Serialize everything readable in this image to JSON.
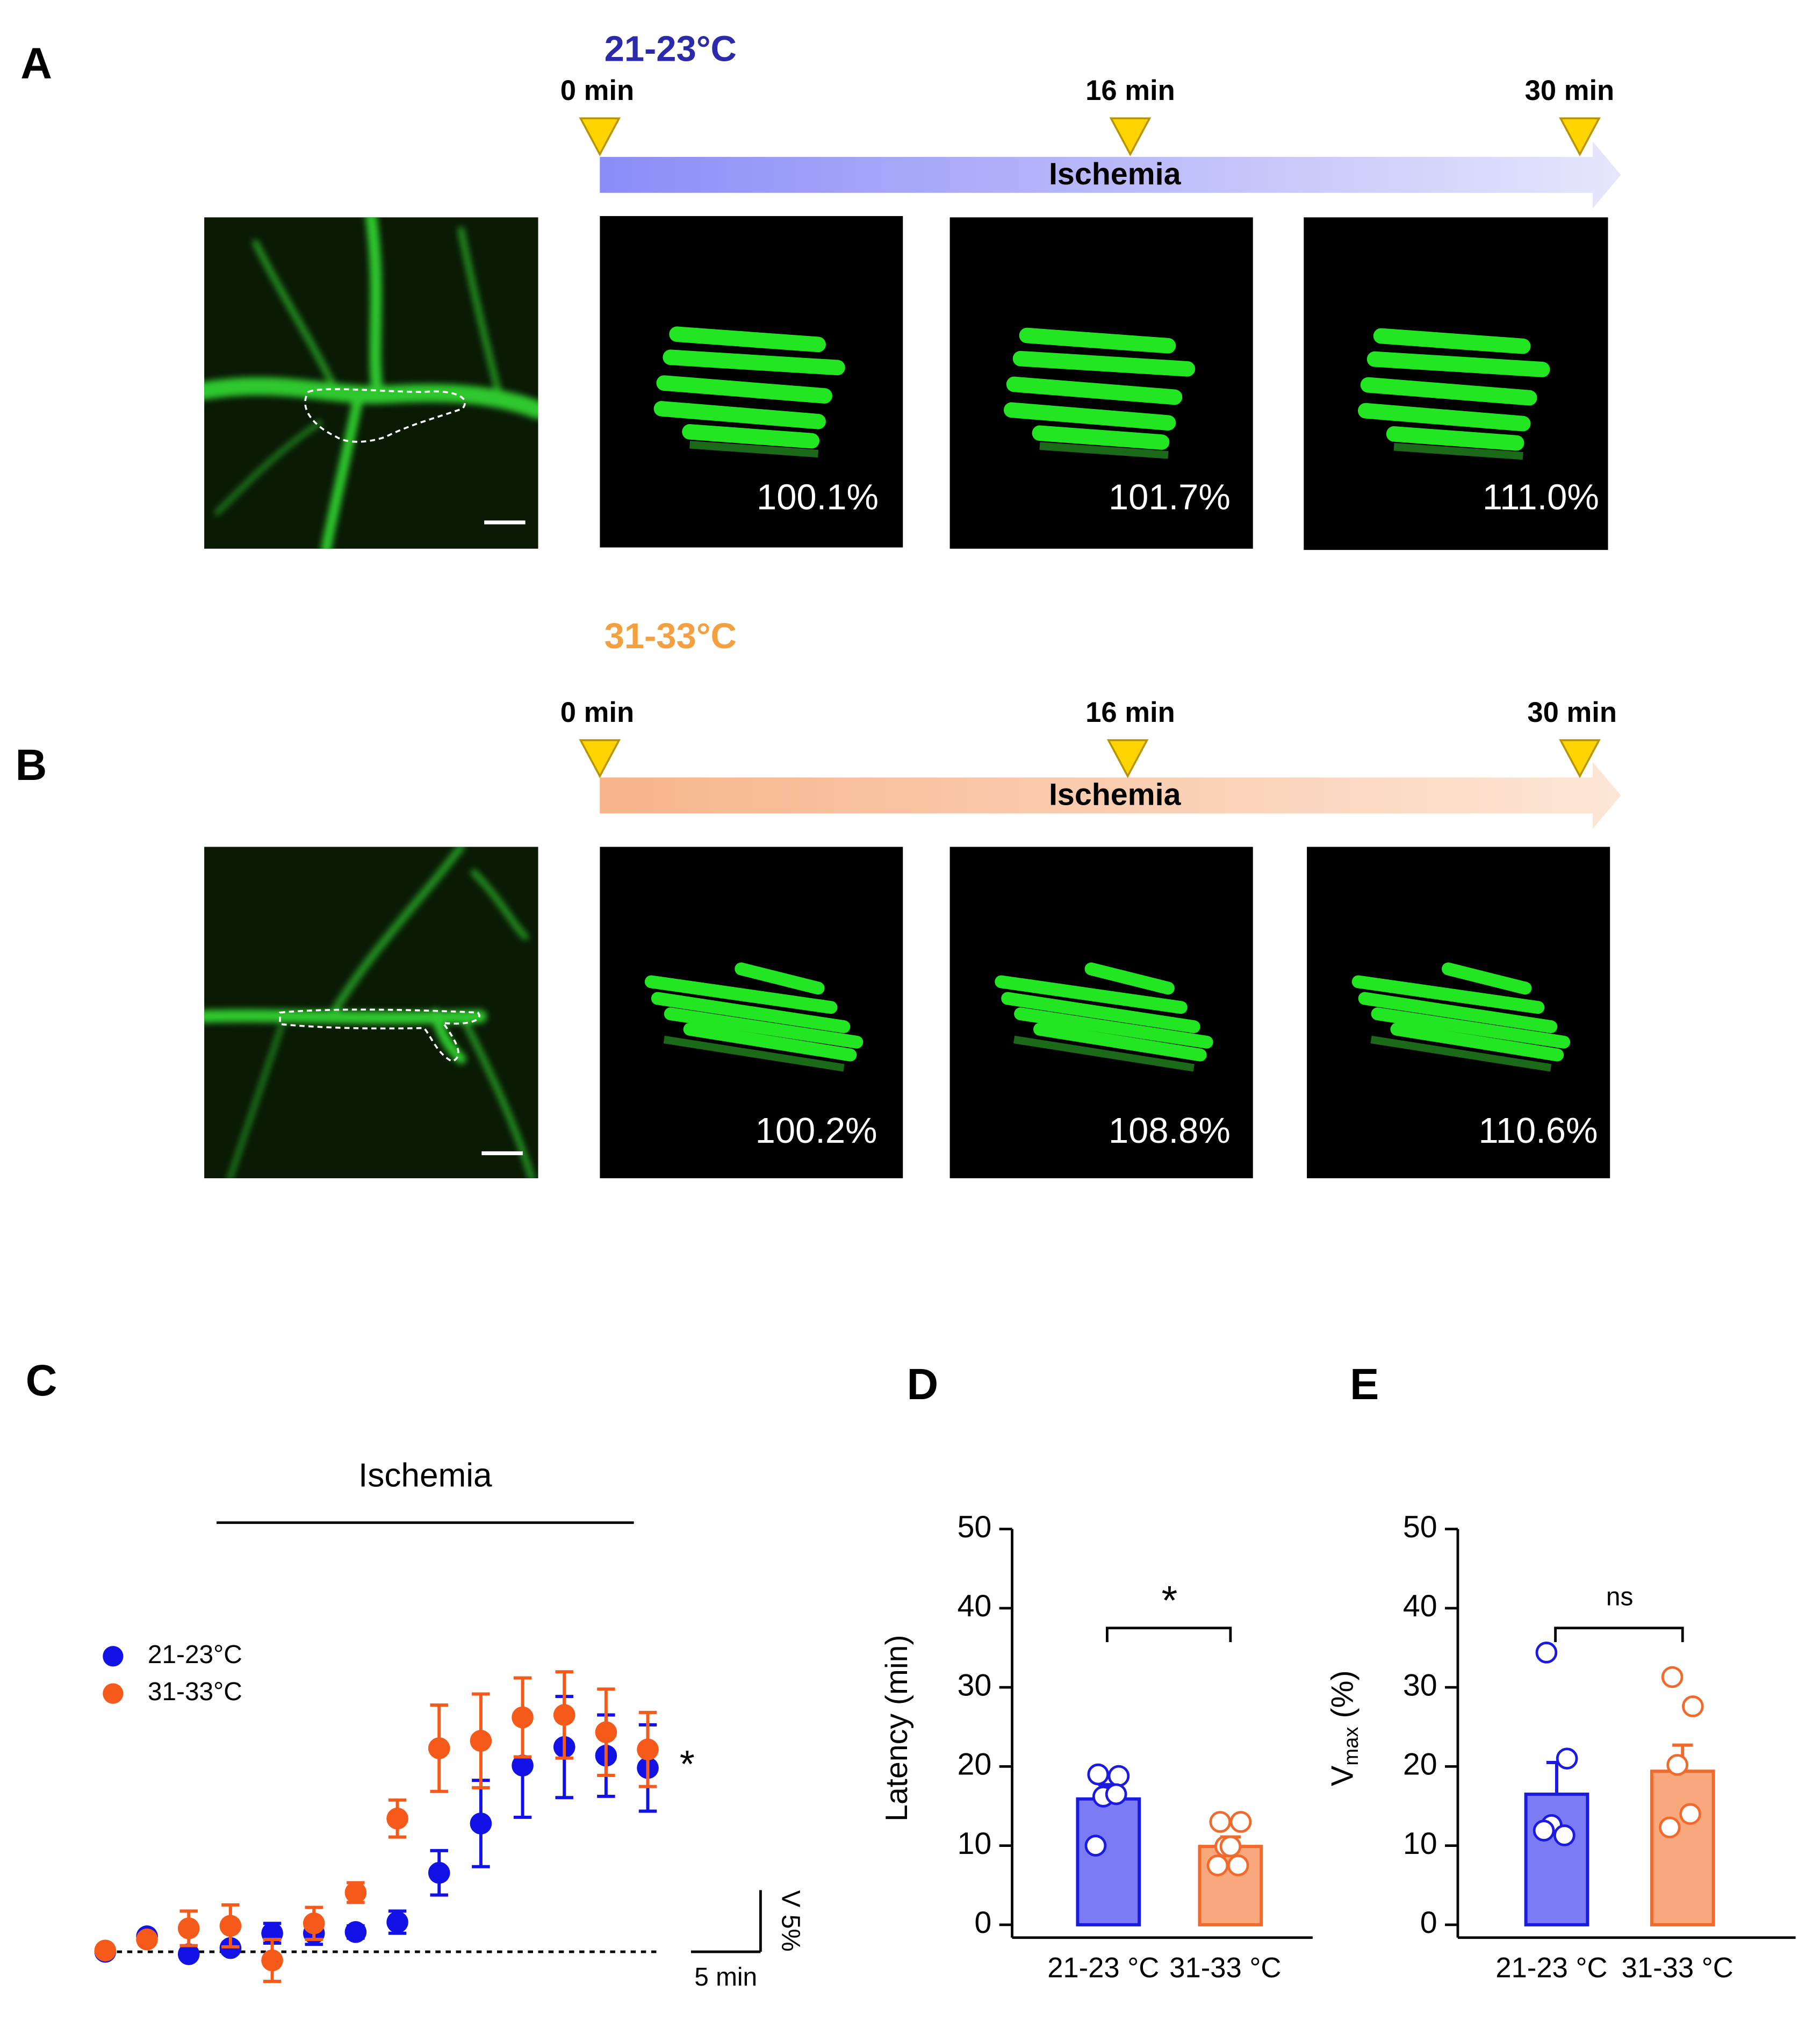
{
  "panel_a": {
    "label": "A",
    "temperature": "21-23°C",
    "times": [
      "0 min",
      "16 min",
      "30 min"
    ],
    "bar_label": "Ischemia",
    "volumes": [
      "100.1%",
      "101.7%",
      "111.0%"
    ]
  },
  "panel_b": {
    "label": "B",
    "temperature": "31-33°C",
    "times": [
      "0 min",
      "16 min",
      "30 min"
    ],
    "bar_label": "Ischemia",
    "volumes": [
      "100.2%",
      "108.8%",
      "110.6%"
    ]
  },
  "chart_data": [
    {
      "type": "scatter",
      "label": "C",
      "annotation": "Ischemia",
      "annotation_span": [
        8,
        38
      ],
      "x": [
        0,
        3,
        6,
        9,
        12,
        15,
        18,
        21,
        24,
        27,
        30,
        33,
        36,
        39
      ],
      "xlim": [
        -2,
        44
      ],
      "ylim": [
        -3,
        25
      ],
      "series": [
        {
          "name": "21-23°C",
          "color": "#1212e6",
          "values": [
            0,
            1.25,
            -0.2,
            0.3,
            1.5,
            1.5,
            1.6,
            2.4,
            6.4,
            10.4,
            15.1,
            16.6,
            15.9,
            14.9
          ],
          "errors": [
            0.2,
            0.3,
            0.3,
            0.4,
            0.8,
            0.9,
            0.5,
            0.9,
            1.8,
            3.5,
            4.2,
            4.1,
            3.3,
            3.5
          ]
        },
        {
          "name": "31-33°C",
          "color": "#f55a1a",
          "values": [
            0.1,
            1.0,
            1.9,
            2.1,
            -0.7,
            2.3,
            4.8,
            10.8,
            16.5,
            17.1,
            19.0,
            19.2,
            17.8,
            16.4
          ],
          "errors": [
            0.3,
            0.4,
            1.4,
            1.7,
            1.7,
            1.3,
            0.8,
            1.5,
            3.5,
            3.8,
            3.2,
            3.5,
            3.5,
            3.0
          ]
        }
      ],
      "significance": "*",
      "scale_bar": {
        "x": 5,
        "y": 5,
        "x_label": "5 min",
        "y_label": "V 5%"
      }
    },
    {
      "type": "bar",
      "label": "D",
      "y_label": "Latency (min)",
      "categories": [
        "21-23 °C",
        "31-33 °C"
      ],
      "values": [
        15.9,
        9.9
      ],
      "errors": [
        1.8,
        1.2
      ],
      "colors": [
        "#7b7bf5",
        "#f9a77c"
      ],
      "edge_colors": [
        "#1a1ae0",
        "#f26a2b"
      ],
      "points": [
        [
          19.0,
          18.8,
          16.2,
          16.5,
          10.0
        ],
        [
          13.0,
          13.0,
          9.9,
          7.5,
          7.5,
          9.9
        ]
      ],
      "ylim": [
        0,
        50
      ],
      "yticks": [
        0,
        10,
        20,
        30,
        40,
        50
      ],
      "significance": "*"
    },
    {
      "type": "bar",
      "label": "E",
      "y_label": "V",
      "y_label_sub": "max",
      "y_label_tail": " (%)",
      "categories": [
        "21-23 °C",
        "31-33 °C"
      ],
      "values": [
        16.5,
        19.4
      ],
      "errors": [
        4.0,
        3.3
      ],
      "colors": [
        "#7b7bf5",
        "#f9a77c"
      ],
      "edge_colors": [
        "#1a1ae0",
        "#f26a2b"
      ],
      "points": [
        [
          34.4,
          21.0,
          12.6,
          11.3,
          11.9
        ],
        [
          31.3,
          27.6,
          20.2,
          14.0,
          12.3
        ]
      ],
      "ylim": [
        0,
        50
      ],
      "yticks": [
        0,
        10,
        20,
        30,
        40,
        50
      ],
      "significance": "ns"
    }
  ]
}
